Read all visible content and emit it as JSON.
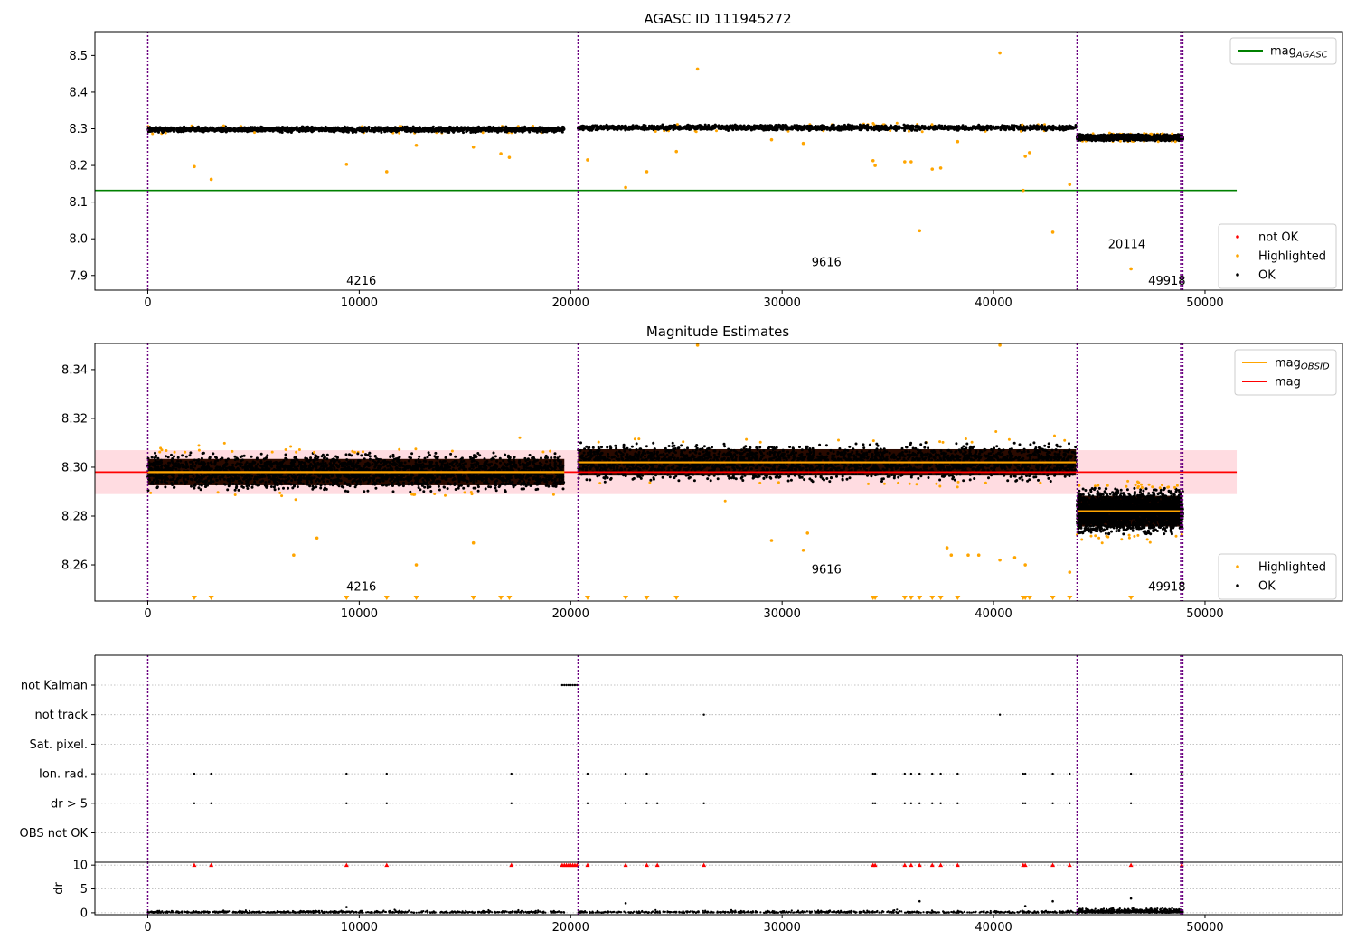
{
  "chart_data": [
    {
      "id": "p1",
      "type": "scatter",
      "title": "AGASC ID 111945272",
      "xlim": [
        -2500,
        56500
      ],
      "ylim": [
        7.86,
        8.565
      ],
      "xticks": [
        0,
        10000,
        20000,
        30000,
        40000,
        50000
      ],
      "yticks": [
        7.9,
        8.0,
        8.1,
        8.2,
        8.3,
        8.4,
        8.5
      ],
      "ytick_labels": [
        "7.9",
        "8.0",
        "8.1",
        "8.2",
        "8.3",
        "8.4",
        "8.5"
      ],
      "grid": false,
      "obs_boundaries": [
        0,
        20350,
        43950,
        48850,
        48950
      ],
      "segments": [
        {
          "x0": 0,
          "x1": 19700,
          "mean": 8.298,
          "spread": 0.006
        },
        {
          "x0": 20350,
          "x1": 43900,
          "mean": 8.303,
          "spread": 0.006
        },
        {
          "x0": 43950,
          "x1": 48950,
          "mean": 8.276,
          "spread": 0.007
        }
      ],
      "highlighted_points": [
        {
          "x": 2200,
          "y": 8.197
        },
        {
          "x": 3000,
          "y": 8.162
        },
        {
          "x": 9400,
          "y": 8.203
        },
        {
          "x": 11300,
          "y": 8.183
        },
        {
          "x": 12700,
          "y": 8.255
        },
        {
          "x": 15400,
          "y": 8.25
        },
        {
          "x": 16700,
          "y": 8.232
        },
        {
          "x": 17100,
          "y": 8.222
        },
        {
          "x": 20800,
          "y": 8.215
        },
        {
          "x": 22600,
          "y": 8.14
        },
        {
          "x": 23600,
          "y": 8.183
        },
        {
          "x": 25000,
          "y": 8.238
        },
        {
          "x": 26000,
          "y": 8.463
        },
        {
          "x": 29500,
          "y": 8.27
        },
        {
          "x": 31000,
          "y": 8.26
        },
        {
          "x": 34300,
          "y": 8.213
        },
        {
          "x": 34400,
          "y": 8.2
        },
        {
          "x": 35800,
          "y": 8.21
        },
        {
          "x": 36100,
          "y": 8.21
        },
        {
          "x": 36500,
          "y": 8.022
        },
        {
          "x": 37100,
          "y": 8.19
        },
        {
          "x": 37500,
          "y": 8.193
        },
        {
          "x": 38300,
          "y": 8.265
        },
        {
          "x": 40300,
          "y": 8.507
        },
        {
          "x": 41400,
          "y": 8.132
        },
        {
          "x": 41500,
          "y": 8.225
        },
        {
          "x": 41700,
          "y": 8.235
        },
        {
          "x": 42800,
          "y": 8.018
        },
        {
          "x": 43600,
          "y": 8.148
        },
        {
          "x": 46500,
          "y": 7.918
        }
      ],
      "lines": [
        {
          "name": "mag_AGASC",
          "y": 8.132,
          "x0": -2500,
          "x1": 51500,
          "color": "#008000"
        }
      ],
      "annotations": [
        {
          "text": "4216",
          "x": 10100,
          "y": 7.875
        },
        {
          "text": "9616",
          "x": 32100,
          "y": 7.925
        },
        {
          "text": "20114",
          "x": 46300,
          "y": 7.975
        },
        {
          "text": "49918",
          "x": 48200,
          "y": 7.875
        }
      ],
      "legend_top": {
        "placement": "top-right",
        "entries": [
          {
            "label": "mag",
            "sub": "AGASC",
            "color": "#008000"
          }
        ]
      },
      "legend_bottom": {
        "placement": "bottom-right",
        "entries": [
          {
            "label": "not OK",
            "color": "#ff0000"
          },
          {
            "label": "Highlighted",
            "color": "#ffa500"
          },
          {
            "label": "OK",
            "color": "#000000"
          }
        ]
      }
    },
    {
      "id": "p2",
      "type": "scatter",
      "title": "Magnitude Estimates",
      "xlim": [
        -2500,
        56500
      ],
      "ylim": [
        8.2452,
        8.3507
      ],
      "xticks": [
        0,
        10000,
        20000,
        30000,
        40000,
        50000
      ],
      "yticks": [
        8.26,
        8.28,
        8.3,
        8.32,
        8.34
      ],
      "ytick_labels": [
        "8.26",
        "8.28",
        "8.30",
        "8.32",
        "8.34"
      ],
      "grid": false,
      "obs_boundaries": [
        0,
        20350,
        43950,
        48850,
        48950
      ],
      "segments": [
        {
          "x0": 0,
          "x1": 19700,
          "mean": 8.298,
          "spread": 0.006
        },
        {
          "x0": 20350,
          "x1": 43900,
          "mean": 8.302,
          "spread": 0.006
        },
        {
          "x0": 43950,
          "x1": 48950,
          "mean": 8.282,
          "spread": 0.007
        }
      ],
      "mean_band": {
        "y0": 8.289,
        "y1": 8.307,
        "x0": -2500,
        "x1": 51500,
        "color": "#ffc0c8"
      },
      "lines": [
        {
          "name": "mag",
          "y": 8.298,
          "x0": -2500,
          "x1": 51500,
          "color": "#ff0000"
        }
      ],
      "obsid_lines": [
        {
          "x0": 0,
          "x1": 19700,
          "y": 8.298
        },
        {
          "x0": 20350,
          "x1": 43900,
          "y": 8.302
        },
        {
          "x0": 43950,
          "x1": 48950,
          "y": 8.282
        }
      ],
      "highlighted_points": [
        {
          "x": 26000,
          "y": 8.35
        },
        {
          "x": 40300,
          "y": 8.35
        },
        {
          "x": 8000,
          "y": 8.271
        },
        {
          "x": 6900,
          "y": 8.264
        },
        {
          "x": 12700,
          "y": 8.26
        },
        {
          "x": 15400,
          "y": 8.269
        },
        {
          "x": 29500,
          "y": 8.27
        },
        {
          "x": 31000,
          "y": 8.266
        },
        {
          "x": 31200,
          "y": 8.273
        },
        {
          "x": 38000,
          "y": 8.264
        },
        {
          "x": 38800,
          "y": 8.264
        },
        {
          "x": 39300,
          "y": 8.264
        },
        {
          "x": 40300,
          "y": 8.262
        },
        {
          "x": 41500,
          "y": 8.26
        },
        {
          "x": 43600,
          "y": 8.257
        },
        {
          "x": 37800,
          "y": 8.267
        },
        {
          "x": 41000,
          "y": 8.263
        }
      ],
      "clipped_low_x": [
        2200,
        3000,
        9400,
        11300,
        12700,
        15400,
        16700,
        17100,
        20800,
        22600,
        23600,
        25000,
        34300,
        34400,
        35800,
        36100,
        36500,
        37100,
        37500,
        38300,
        41400,
        41500,
        41700,
        42800,
        43600,
        46500
      ],
      "annotations": [
        {
          "text": "4216",
          "x": 10100,
          "y": 8.2495
        },
        {
          "text": "9616",
          "x": 32100,
          "y": 8.2565
        },
        {
          "text": "49918",
          "x": 48200,
          "y": 8.2495
        }
      ],
      "legend_top": {
        "placement": "top-right",
        "entries": [
          {
            "label": "mag",
            "sub": "OBSID",
            "color": "#ffa500"
          },
          {
            "label": "mag",
            "sub": "",
            "color": "#ff0000"
          }
        ]
      },
      "legend_bottom": {
        "placement": "bottom-right",
        "entries": [
          {
            "label": "Highlighted",
            "color": "#ffa500"
          },
          {
            "label": "OK",
            "color": "#000000"
          }
        ]
      }
    },
    {
      "id": "p3",
      "type": "scatter",
      "xlim": [
        -2500,
        56500
      ],
      "xticks": [
        0,
        10000,
        20000,
        30000,
        40000,
        50000
      ],
      "obs_boundaries": [
        0,
        20350,
        43950,
        48850,
        48950
      ],
      "flag_rows": [
        "not Kalman",
        "not track",
        "Sat. pixel.",
        "Ion. rad.",
        "dr > 5",
        "OBS not OK"
      ],
      "flags": {
        "not Kalman": [
          19600,
          19700,
          19800,
          19900,
          20000,
          20100,
          20200,
          20300
        ],
        "not track": [
          26300,
          40300
        ],
        "Sat. pixel.": [],
        "Ion. rad.": [
          2200,
          3000,
          9400,
          11300,
          17200,
          20800,
          22600,
          23600,
          34300,
          34400,
          35800,
          36100,
          36500,
          37100,
          37500,
          38300,
          41400,
          41500,
          42800,
          43600,
          46500,
          48900
        ],
        "dr > 5": [
          2200,
          3000,
          9400,
          11300,
          17200,
          20800,
          22600,
          23600,
          24100,
          26300,
          34300,
          34400,
          35800,
          36100,
          36500,
          37100,
          37500,
          38300,
          41400,
          41500,
          42800,
          43600,
          46500,
          48900
        ],
        "OBS not OK": []
      },
      "dr_axis": {
        "ylabel": "dr",
        "ylim": [
          -0.4,
          10.6
        ],
        "yticks": [
          0,
          5,
          10
        ],
        "ytick_labels": [
          "0",
          "5",
          "10"
        ],
        "clip_value": 10,
        "clipped_x": [
          2200,
          3000,
          9400,
          11300,
          17200,
          19600,
          19700,
          19800,
          19900,
          20000,
          20100,
          20200,
          20300,
          20800,
          22600,
          23600,
          24100,
          26300,
          34300,
          34400,
          35800,
          36100,
          36500,
          37100,
          37500,
          38300,
          41400,
          41500,
          42800,
          43600,
          46500,
          48900
        ],
        "outliers": [
          {
            "x": 9400,
            "y": 1.2
          },
          {
            "x": 22600,
            "y": 2.0
          },
          {
            "x": 36500,
            "y": 2.4
          },
          {
            "x": 42800,
            "y": 2.4
          },
          {
            "x": 46500,
            "y": 3.0
          },
          {
            "x": 41500,
            "y": 1.4
          }
        ]
      }
    }
  ]
}
